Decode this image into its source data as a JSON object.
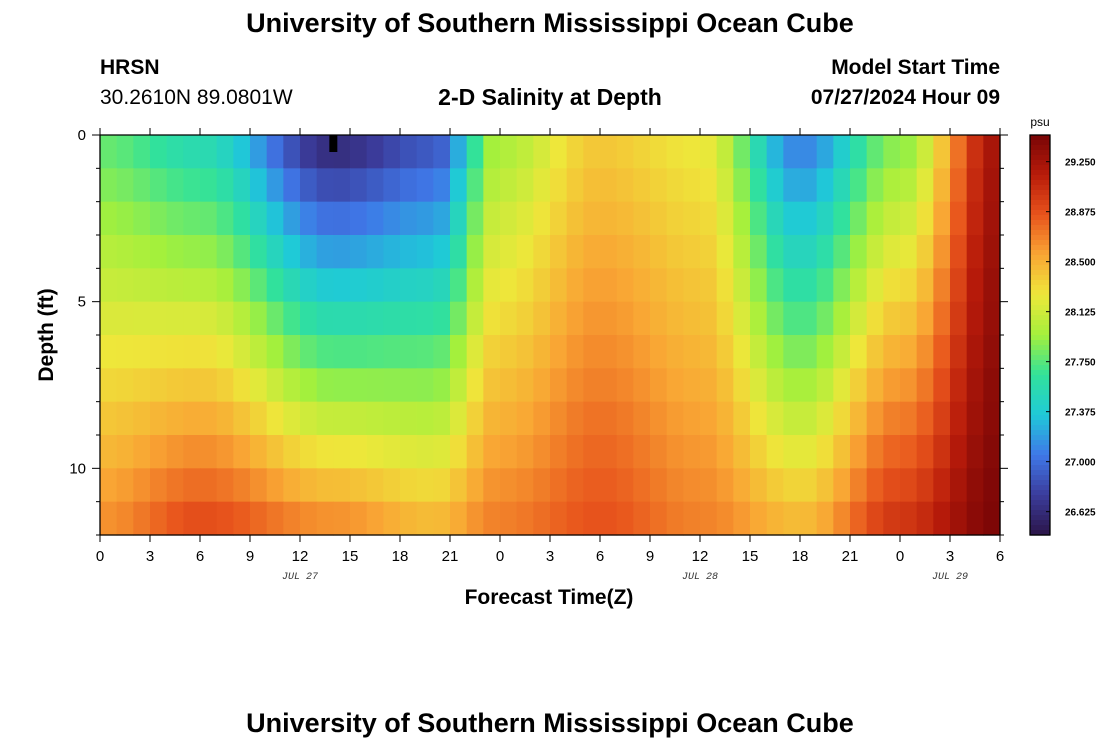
{
  "header": {
    "title": "University of Southern Mississippi Ocean Cube",
    "station": "HRSN",
    "coords": "30.2610N  89.0801W",
    "subtitle": "2-D Salinity at Depth",
    "model_start_label": "Model Start Time",
    "model_start_value": "07/27/2024 Hour 09"
  },
  "footer": {
    "title": "University of Southern Mississippi Ocean Cube"
  },
  "chart_data": {
    "type": "heatmap",
    "title": "2-D Salinity at Depth",
    "xlabel": "Forecast Time(Z)",
    "ylabel": "Depth (ft)",
    "x_ticks": [
      "0",
      "3",
      "6",
      "9",
      "12",
      "15",
      "18",
      "21",
      "0",
      "3",
      "6",
      "9",
      "12",
      "15",
      "18",
      "21",
      "0",
      "3",
      "6"
    ],
    "x_range_hours": [
      0,
      54
    ],
    "date_labels": [
      {
        "text": "JUL 27",
        "hour": 12
      },
      {
        "text": "JUL 28",
        "hour": 36
      },
      {
        "text": "JUL 29",
        "hour": 51
      }
    ],
    "y_ticks": [
      "0",
      "5",
      "10"
    ],
    "y_range_ft": [
      0,
      12
    ],
    "n_time_steps": 54,
    "n_depth_levels": 12,
    "depth_profiles_by_hour": [
      {
        "hour": 0,
        "values": [
          27.79,
          27.86,
          27.94,
          28.02,
          28.09,
          28.17,
          28.25,
          28.32,
          28.4,
          28.47,
          28.55,
          28.62
        ]
      },
      {
        "hour": 6,
        "values": [
          27.55,
          27.67,
          27.79,
          27.91,
          28.03,
          28.16,
          28.28,
          28.4,
          28.52,
          28.64,
          28.76,
          28.88
        ]
      },
      {
        "hour": 14,
        "values": [
          26.65,
          26.83,
          27.01,
          27.19,
          27.37,
          27.55,
          27.72,
          27.9,
          28.08,
          28.26,
          28.44,
          28.62
        ]
      },
      {
        "hour": 20,
        "values": [
          26.9,
          27.04,
          27.18,
          27.32,
          27.46,
          27.6,
          27.75,
          27.89,
          28.03,
          28.17,
          28.31,
          28.45
        ]
      },
      {
        "hour": 24,
        "values": [
          28.0,
          28.06,
          28.13,
          28.19,
          28.25,
          28.31,
          28.38,
          28.44,
          28.5,
          28.56,
          28.63,
          28.69
        ]
      },
      {
        "hour": 30,
        "values": [
          28.4,
          28.44,
          28.48,
          28.53,
          28.57,
          28.61,
          28.65,
          28.69,
          28.74,
          28.78,
          28.82,
          28.86
        ]
      },
      {
        "hour": 36,
        "values": [
          28.25,
          28.29,
          28.33,
          28.37,
          28.41,
          28.44,
          28.48,
          28.52,
          28.56,
          28.6,
          28.64,
          28.68
        ]
      },
      {
        "hour": 42,
        "values": [
          27.1,
          27.22,
          27.35,
          27.47,
          27.59,
          27.71,
          27.84,
          27.96,
          28.08,
          28.2,
          28.33,
          28.45
        ]
      },
      {
        "hour": 48,
        "values": [
          27.9,
          28.0,
          28.1,
          28.2,
          28.3,
          28.4,
          28.5,
          28.6,
          28.7,
          28.8,
          28.9,
          29.0
        ]
      },
      {
        "hour": 54,
        "values": [
          29.25,
          29.27,
          29.28,
          29.3,
          29.32,
          29.33,
          29.35,
          29.37,
          29.38,
          29.4,
          29.42,
          29.43
        ]
      }
    ],
    "colorbar": {
      "unit": "psu",
      "ticks": [
        "29.250",
        "28.875",
        "28.500",
        "28.125",
        "27.750",
        "27.375",
        "27.000",
        "26.625"
      ],
      "range": [
        26.45,
        29.45
      ],
      "colors": [
        "#2b1548",
        "#3b3c9c",
        "#3f78e8",
        "#1fc9d8",
        "#32e29a",
        "#a4f03c",
        "#eee73a",
        "#f9a634",
        "#e8541c",
        "#b81b0a",
        "#780506"
      ]
    },
    "marker": {
      "hour": 14,
      "depth_ft": 0
    }
  }
}
